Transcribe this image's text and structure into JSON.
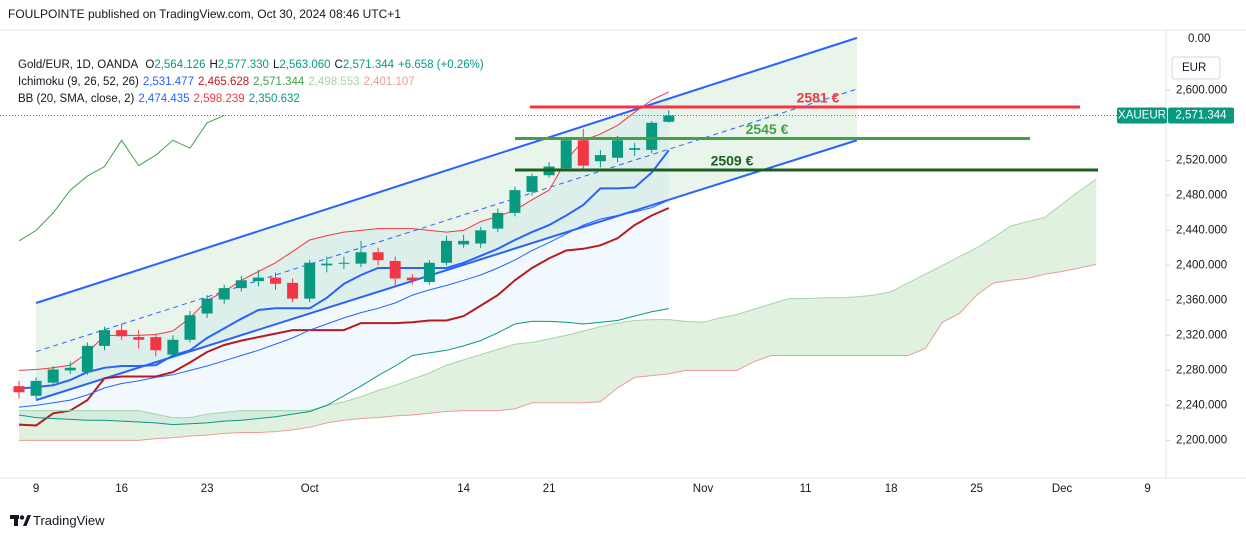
{
  "header": "FOULPOINTE published on TradingView.com, Oct 30, 2024 08:46 UTC+1",
  "footer": "TradingView",
  "chart_data": {
    "type": "candlestick",
    "categories": [
      null,
      "9",
      null,
      null,
      null,
      null,
      "16",
      null,
      null,
      null,
      null,
      "23",
      null,
      null,
      null,
      null,
      null,
      "Oct",
      null,
      null,
      null,
      null,
      null,
      null,
      null,
      null,
      "14",
      null,
      null,
      null,
      null,
      "21",
      null,
      null,
      null,
      null,
      null,
      null,
      null,
      null,
      "Nov",
      null,
      null,
      null,
      null,
      null,
      "11",
      null,
      null,
      null,
      null,
      "18",
      null,
      null,
      null,
      null,
      "25",
      null,
      null,
      null,
      null,
      "Dec",
      null,
      null,
      null,
      null,
      "9"
    ],
    "open": [
      2262,
      2251,
      2266,
      2280,
      2278,
      2308,
      2326,
      2318,
      2318,
      2298,
      2315,
      2345,
      2361,
      2374,
      2382,
      2386,
      2380,
      2362,
      2400,
      2402,
      2402,
      2415,
      2405,
      2386,
      2381,
      2403,
      2424,
      2425,
      2442,
      2460,
      2484,
      2503,
      2511,
      2543,
      2519,
      2523,
      2532,
      2532,
      2564.126,
      null,
      null,
      null,
      null,
      null,
      null,
      null,
      null,
      null,
      null,
      null,
      null,
      null,
      null,
      null,
      null,
      null,
      null,
      null,
      null,
      null,
      null,
      null,
      null,
      null,
      null,
      null,
      null
    ],
    "high": [
      2268,
      2272,
      2285,
      2290,
      2312,
      2330,
      2333,
      2326,
      2322,
      2320,
      2348,
      2366,
      2378,
      2388,
      2395,
      2392,
      2385,
      2406,
      2410,
      2410,
      2428,
      2420,
      2410,
      2390,
      2406,
      2434,
      2435,
      2444,
      2465,
      2490,
      2505,
      2518,
      2547,
      2556,
      2532,
      2548,
      2540,
      2565,
      2577.33,
      null,
      null,
      null,
      null,
      null,
      null,
      null,
      null,
      null,
      null,
      null,
      null,
      null,
      null,
      null,
      null,
      null,
      null,
      null,
      null,
      null,
      null,
      null,
      null,
      null,
      null,
      null,
      null
    ],
    "low": [
      2248,
      2247,
      2262,
      2276,
      2275,
      2303,
      2315,
      2305,
      2296,
      2294,
      2312,
      2340,
      2356,
      2370,
      2376,
      2372,
      2358,
      2358,
      2392,
      2396,
      2398,
      2400,
      2376,
      2378,
      2378,
      2400,
      2420,
      2420,
      2438,
      2456,
      2480,
      2500,
      2508,
      2510,
      2512,
      2518,
      2525,
      2528,
      2563.06,
      null,
      null,
      null,
      null,
      null,
      null,
      null,
      null,
      null,
      null,
      null,
      null,
      null,
      null,
      null,
      null,
      null,
      null,
      null,
      null,
      null,
      null,
      null,
      null,
      null,
      null,
      null,
      null
    ],
    "close": [
      2255,
      2268,
      2281,
      2283,
      2308,
      2326,
      2319,
      2315,
      2303,
      2315,
      2343,
      2362,
      2374,
      2383,
      2386,
      2379,
      2362,
      2403,
      2402,
      2403,
      2415,
      2406,
      2385,
      2383,
      2403,
      2428,
      2428,
      2440,
      2460,
      2486,
      2502,
      2513,
      2543,
      2514,
      2526,
      2543,
      2534,
      2563,
      2571.344,
      null,
      null,
      null,
      null,
      null,
      null,
      null,
      null,
      null,
      null,
      null,
      null,
      null,
      null,
      null,
      null,
      null,
      null,
      null,
      null,
      null,
      null,
      null,
      null,
      null,
      null,
      null,
      null
    ],
    "up_color": "#089981",
    "down_color": "#f23645",
    "ylim": [
      2157,
      2669
    ],
    "yticks": [
      {
        "value": 2200,
        "label": "2,200.000"
      },
      {
        "value": 2240,
        "label": "2,240.000"
      },
      {
        "value": 2280,
        "label": "2,280.000"
      },
      {
        "value": 2320,
        "label": "2,320.000"
      },
      {
        "value": 2360,
        "label": "2,360.000"
      },
      {
        "value": 2400,
        "label": "2,400.000"
      },
      {
        "value": 2440,
        "label": "2,440.000"
      },
      {
        "value": 2480,
        "label": "2,480.000"
      },
      {
        "value": 2520,
        "label": "2,520.000"
      },
      {
        "value": 2600,
        "label": "2,600.000"
      }
    ],
    "grid": false,
    "scale_top_label": "0.00",
    "currency": "EUR",
    "price_tag": {
      "symbol": "XAUEUR",
      "label": "2,571.344"
    },
    "legend": {
      "symbol": "Gold/EUR, 1D, OANDA",
      "ohlc": [
        {
          "key": "O",
          "label": "2,564.126"
        },
        {
          "key": "H",
          "label": "2,577.330"
        },
        {
          "key": "L",
          "label": "2,563.060"
        },
        {
          "key": "C",
          "label": "2,571.344"
        }
      ],
      "change": "+6.658 (+0.26%)"
    },
    "indicators": [
      {
        "title": "Ichimoku (9, 26, 52, 26)",
        "lines": [
          {
            "color": "#2962ff",
            "label": "2,531.477",
            "values": [
              2259,
              2261,
              2263,
              2269,
              2278,
              2283,
              2285,
              2285,
              2286,
              2297,
              2303,
              2317,
              2328,
              2339,
              2349,
              2351,
              2351,
              2351,
              2363,
              2379,
              2389,
              2397,
              2397,
              2397,
              2397,
              2397,
              2403,
              2411,
              2419,
              2429,
              2438,
              2446,
              2457,
              2469,
              2488,
              2488,
              2489,
              2506,
              2531.477,
              null,
              null,
              null,
              null,
              null,
              null,
              null,
              null,
              null,
              null,
              null,
              null,
              null,
              null,
              null,
              null,
              null,
              null,
              null,
              null,
              null,
              null,
              null,
              null,
              null,
              null,
              null,
              null
            ]
          },
          {
            "color": "#b71c1c",
            "label": "2,465.628",
            "values": [
              2218,
              2217,
              2231,
              2234,
              2246,
              2271,
              2273,
              2273,
              2273,
              2278,
              2289,
              2301,
              2309,
              2314,
              2318,
              2322,
              2326,
              2326,
              2326,
              2326,
              2334,
              2334,
              2334,
              2335,
              2337,
              2337,
              2342,
              2354,
              2366,
              2383,
              2397,
              2408,
              2417,
              2419,
              2423,
              2431,
              2446,
              2457,
              2465.628,
              null,
              null,
              null,
              null,
              null,
              null,
              null,
              null,
              null,
              null,
              null,
              null,
              null,
              null,
              null,
              null,
              null,
              null,
              null,
              null,
              null,
              null,
              null,
              null,
              null,
              null,
              null,
              null
            ]
          },
          {
            "color": "#43a047",
            "label": "2,571.344",
            "values": [
              2428,
              2440,
              2460,
              2486,
              2502,
              2513,
              2543,
              2514,
              2526,
              2543,
              2534,
              2563,
              2571.344,
              null,
              null,
              null,
              null,
              null,
              null,
              null,
              null,
              null,
              null,
              null,
              null,
              null,
              null,
              null,
              null,
              null,
              null,
              null,
              null,
              null,
              null,
              null,
              null,
              null,
              null,
              null,
              null,
              null,
              null,
              null,
              null,
              null,
              null,
              null,
              null,
              null,
              null,
              null,
              null,
              null,
              null,
              null,
              null,
              null,
              null,
              null,
              null,
              null,
              null,
              null,
              null,
              null,
              null
            ]
          },
          {
            "color": "#a5d6a7",
            "label": "2,498.553",
            "values": [
              2234,
              2234,
              2234,
              2234,
              2234,
              2234,
              2234,
              2234,
              2230,
              2226,
              2226,
              2230,
              2232,
              2234,
              2234,
              2234,
              2234,
              2234,
              2240,
              2244,
              2250,
              2257,
              2263,
              2270,
              2277,
              2286,
              2292,
              2298,
              2304,
              2310,
              2312,
              2316,
              2320,
              2325,
              2330,
              2334,
              2337,
              2338,
              2338,
              2336,
              2335,
              2340,
              2344,
              2350,
              2356,
              2362,
              2362,
              2363,
              2363,
              2364,
              2366,
              2370,
              2380,
              2390,
              2400,
              2410,
              2420,
              2432,
              2445,
              2450,
              2455,
              2470,
              2485,
              2498.553,
              null,
              null,
              null
            ]
          },
          {
            "color": "#ef9a9a",
            "label": "2,401.107",
            "values": [
              2200,
              2200,
              2200,
              2200,
              2200,
              2200,
              2200,
              2200,
              2202,
              2203,
              2205,
              2206,
              2208,
              2209,
              2209,
              2210,
              2212,
              2215,
              2220,
              2223,
              2225,
              2226,
              2228,
              2229,
              2231,
              2233,
              2234,
              2234,
              2234,
              2236,
              2243,
              2243,
              2243,
              2243,
              2244,
              2260,
              2272,
              2274,
              2276,
              2280,
              2280,
              2280,
              2280,
              2290,
              2297,
              2297,
              2297,
              2297,
              2297,
              2297,
              2297,
              2297,
              2297,
              2305,
              2335,
              2345,
              2366,
              2380,
              2383,
              2385,
              2390,
              2393,
              2397,
              2401.107,
              null,
              null,
              null
            ]
          }
        ]
      },
      {
        "title": "BB (20, SMA, close, 2)",
        "lines": [
          {
            "color": "#2962ff",
            "label": "2,474.435",
            "values": [
              2238,
              2240,
              2243,
              2246,
              2252,
              2260,
              2265,
              2268,
              2272,
              2275,
              2280,
              2285,
              2291,
              2297,
              2303,
              2310,
              2317,
              2326,
              2333,
              2340,
              2346,
              2351,
              2357,
              2366,
              2372,
              2377,
              2383,
              2389,
              2397,
              2406,
              2417,
              2426,
              2436,
              2446,
              2453,
              2457,
              2461,
              2466,
              2474.435,
              null,
              null,
              null,
              null,
              null,
              null,
              null,
              null,
              null,
              null,
              null,
              null,
              null,
              null,
              null,
              null,
              null,
              null,
              null,
              null,
              null,
              null,
              null,
              null,
              null,
              null,
              null,
              null
            ]
          },
          {
            "color": "#f23645",
            "label": "2,598.239",
            "values": [
              2280,
              2281,
              2283,
              2286,
              2300,
              2320,
              2320,
              2320,
              2321,
              2325,
              2340,
              2360,
              2370,
              2383,
              2393,
              2403,
              2416,
              2429,
              2434,
              2438,
              2440,
              2442,
              2442,
              2442,
              2440,
              2438,
              2440,
              2450,
              2456,
              2463,
              2475,
              2486,
              2520,
              2543,
              2550,
              2560,
              2575,
              2589,
              2598.239,
              null,
              null,
              null,
              null,
              null,
              null,
              null,
              null,
              null,
              null,
              null,
              null,
              null,
              null,
              null,
              null,
              null,
              null,
              null,
              null,
              null,
              null,
              null,
              null,
              null,
              null,
              null,
              null
            ]
          },
          {
            "color": "#089981",
            "label": "2,350.632",
            "values": [
              2229,
              2226,
              2225,
              2224,
              2223,
              2223,
              2222,
              2221,
              2220,
              2218,
              2219,
              2220,
              2222,
              2223,
              2225,
              2227,
              2230,
              2233,
              2240,
              2251,
              2262,
              2274,
              2285,
              2297,
              2300,
              2303,
              2308,
              2314,
              2323,
              2333,
              2336,
              2336,
              2335,
              2333,
              2335,
              2337,
              2342,
              2347,
              2350.632,
              null,
              null,
              null,
              null,
              null,
              null,
              null,
              null,
              null,
              null,
              null,
              null,
              null,
              null,
              null,
              null,
              null,
              null,
              null,
              null,
              null,
              null,
              null,
              null,
              null,
              null,
              null,
              null
            ]
          }
        ]
      }
    ],
    "channel": {
      "upper": [
        2357,
        2660
      ],
      "lower": [
        2246,
        2543
      ],
      "color": "#2962ff"
    },
    "levels": [
      {
        "value": 2581,
        "label": "2581 €",
        "color": "#f23645"
      },
      {
        "value": 2545,
        "label": "2545 €",
        "color": "#43a047"
      },
      {
        "value": 2509,
        "label": "2509 €",
        "color": "#1b5e20"
      }
    ]
  }
}
